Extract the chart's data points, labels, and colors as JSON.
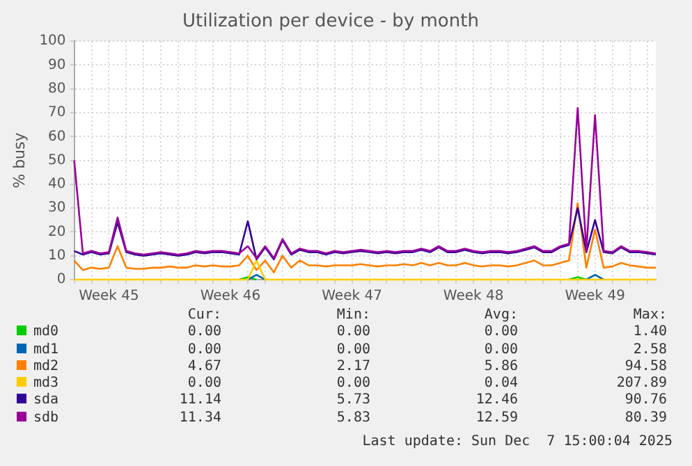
{
  "chart_data": {
    "type": "line",
    "title": "Utilization per device - by month",
    "ylabel": "% busy",
    "categories": [
      null,
      null,
      null,
      null,
      "Week 45",
      null,
      null,
      null,
      null,
      null,
      null,
      null,
      null,
      null,
      null,
      null,
      null,
      null,
      "Week 46",
      null,
      null,
      null,
      null,
      null,
      null,
      null,
      null,
      null,
      null,
      null,
      null,
      null,
      "Week 47",
      null,
      null,
      null,
      null,
      null,
      null,
      null,
      null,
      null,
      null,
      null,
      null,
      null,
      "Week 48",
      null,
      null,
      null,
      null,
      null,
      null,
      null,
      null,
      null,
      null,
      null,
      null,
      null,
      "Week 49",
      null,
      null,
      null,
      null,
      null,
      null,
      null
    ],
    "ylim": [
      0,
      100
    ],
    "yticks": [
      0,
      10,
      20,
      30,
      40,
      50,
      60,
      70,
      80,
      90,
      100
    ],
    "grid": true,
    "legend": "bottom",
    "series": [
      {
        "name": "md0",
        "color": "#00cc00",
        "values": [
          null,
          null,
          null,
          null,
          null,
          null,
          null,
          null,
          null,
          null,
          null,
          null,
          null,
          null,
          null,
          null,
          null,
          null,
          null,
          0,
          1,
          0,
          null,
          null,
          null,
          null,
          null,
          null,
          null,
          null,
          null,
          null,
          null,
          null,
          null,
          null,
          null,
          null,
          null,
          null,
          null,
          null,
          null,
          null,
          null,
          null,
          null,
          null,
          null,
          null,
          null,
          null,
          null,
          null,
          null,
          null,
          null,
          0,
          1,
          0,
          null,
          null,
          null,
          null,
          null,
          null,
          null,
          null
        ]
      },
      {
        "name": "md1",
        "color": "#0066b3",
        "values": [
          null,
          null,
          null,
          null,
          null,
          null,
          null,
          null,
          null,
          null,
          null,
          null,
          null,
          null,
          null,
          null,
          null,
          null,
          null,
          null,
          0,
          2,
          0,
          null,
          null,
          null,
          null,
          null,
          null,
          null,
          null,
          null,
          null,
          null,
          null,
          null,
          null,
          null,
          null,
          null,
          null,
          null,
          null,
          null,
          null,
          null,
          null,
          null,
          null,
          null,
          null,
          null,
          null,
          null,
          null,
          null,
          null,
          null,
          null,
          0,
          2,
          0,
          null,
          null,
          null,
          null,
          null,
          null
        ]
      },
      {
        "name": "md2",
        "color": "#ff8000",
        "values": [
          8,
          4,
          5,
          4.5,
          5,
          14,
          5,
          4.5,
          4.5,
          5,
          5,
          5.5,
          5,
          5,
          6,
          5.5,
          6,
          5.5,
          5.5,
          6,
          10,
          4,
          8,
          3,
          10,
          5,
          8,
          6,
          6,
          5.5,
          6,
          6,
          6,
          6.5,
          6,
          5.5,
          6,
          6,
          6.5,
          6,
          7,
          6,
          7,
          6,
          6,
          7,
          6,
          5.5,
          6,
          6,
          5.5,
          6,
          7,
          8,
          6,
          6,
          7,
          8,
          32,
          5,
          21,
          5,
          5.5,
          7,
          6,
          5.5,
          5,
          5
        ]
      },
      {
        "name": "md3",
        "color": "#ffcc00",
        "values": [
          0,
          0,
          0,
          0,
          0,
          0,
          0,
          0,
          0,
          0,
          0,
          0,
          0,
          0,
          0,
          0,
          0,
          0,
          0,
          0,
          0,
          8,
          0,
          0,
          0,
          0,
          0,
          0,
          0,
          0,
          0,
          0,
          0,
          0,
          0,
          0,
          0,
          0,
          0,
          0,
          0,
          0,
          0,
          0,
          0,
          0,
          0,
          0,
          0,
          0,
          0,
          0,
          0,
          0,
          0,
          0,
          0,
          0,
          0,
          0,
          0,
          0,
          0,
          0,
          0,
          0,
          0,
          0
        ]
      },
      {
        "name": "sda",
        "color": "#330099",
        "values": [
          12,
          10.5,
          11.5,
          10.5,
          11,
          24,
          11.5,
          10.5,
          10,
          10.5,
          11,
          10.5,
          10,
          10.5,
          11.5,
          11,
          11.5,
          11.5,
          11,
          10.5,
          24.5,
          8.5,
          13.5,
          8.5,
          16.5,
          10.5,
          12.5,
          11.5,
          11.5,
          10.5,
          11.5,
          11,
          11.5,
          12,
          11.5,
          11,
          11.5,
          11,
          11.5,
          11.5,
          12.5,
          11.5,
          13.5,
          11.5,
          11.5,
          12.5,
          11.5,
          11,
          11.5,
          11.5,
          11,
          11.5,
          12.5,
          13.5,
          11.5,
          11.5,
          13.5,
          14.5,
          30,
          11.5,
          25,
          11.5,
          11,
          13.5,
          11.5,
          11.5,
          11,
          10.5
        ]
      },
      {
        "name": "sdb",
        "color": "#990099",
        "values": [
          50,
          11,
          12,
          11,
          11.5,
          26,
          12,
          11,
          10.5,
          11,
          11.5,
          11,
          10.5,
          11,
          12,
          11.5,
          12,
          12,
          11.5,
          11,
          14,
          9,
          14,
          9,
          17,
          11,
          13,
          12,
          12,
          11,
          12,
          11.5,
          12,
          12.5,
          12,
          11.5,
          12,
          11.5,
          12,
          12,
          13,
          12,
          14,
          12,
          12,
          13,
          12,
          11.5,
          12,
          12,
          11.5,
          12,
          13,
          14,
          12,
          12,
          14,
          15,
          72,
          12,
          69,
          12,
          11.5,
          14,
          12,
          12,
          11.5,
          11
        ]
      }
    ],
    "annotations": [
      "Cur: Min: Avg: Max:",
      "0.00 0.00 0.00 1.40",
      "0.00 0.00 0.00 2.58",
      "4.67 2.17 5.86 94.58",
      "0.00 0.00 0.04 207.89",
      "11.14 5.73 12.46 90.76",
      "11.34 5.83 12.59 80.39",
      "Last update: Sun Dec  7 15:00:04 2025"
    ]
  }
}
